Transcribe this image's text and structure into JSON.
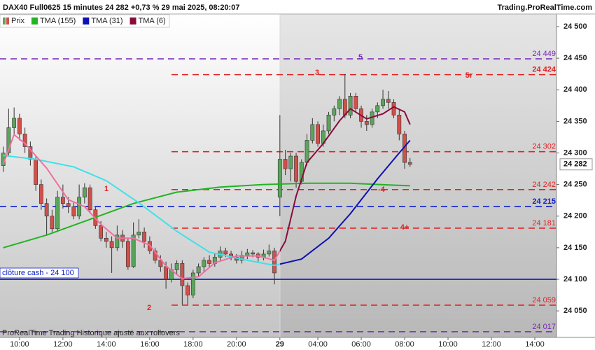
{
  "chart_data": {
    "type": "candlestick",
    "title": "DAX40 Full0625 15 minutes 24 282 +0,73 % 29 mai 2025, 08:20:07",
    "source": "Trading.ProRealTime.com",
    "footer": "ProRealTime Trading  Historique ajusté aux rollovers",
    "xlim": [
      -3.6,
      99
    ],
    "ylim": [
      24008,
      24520
    ],
    "grid": false,
    "xticks": [
      {
        "value": 0,
        "label": "10:00"
      },
      {
        "value": 8,
        "label": "12:00"
      },
      {
        "value": 16,
        "label": "14:00"
      },
      {
        "value": 24,
        "label": "16:00"
      },
      {
        "value": 32,
        "label": "18:00"
      },
      {
        "value": 40,
        "label": "20:00"
      },
      {
        "value": 48,
        "label": "29"
      },
      {
        "value": 55,
        "label": "04:00"
      },
      {
        "value": 63,
        "label": "06:00"
      },
      {
        "value": 71,
        "label": "08:00"
      },
      {
        "value": 79,
        "label": "10:00"
      },
      {
        "value": 87,
        "label": "12:00"
      },
      {
        "value": 95,
        "label": "14:00"
      }
    ],
    "yticks": [
      {
        "value": 24050,
        "label": "24 050"
      },
      {
        "value": 24100,
        "label": "24 100"
      },
      {
        "value": 24150,
        "label": "24 150"
      },
      {
        "value": 24200,
        "label": "24 200"
      },
      {
        "value": 24250,
        "label": "24 250"
      },
      {
        "value": 24300,
        "label": "24 300"
      },
      {
        "value": 24350,
        "label": "24 350"
      },
      {
        "value": 24400,
        "label": "24 400"
      },
      {
        "value": 24450,
        "label": "24 450"
      },
      {
        "value": 24500,
        "label": "24 500"
      }
    ],
    "series": [
      {
        "name": "Prix",
        "up_color": "#5aa55a",
        "down_color": "#d0504a",
        "x": [
          -3,
          -2,
          -1,
          0,
          1,
          2,
          3,
          4,
          5,
          6,
          7,
          8,
          9,
          10,
          11,
          12,
          13,
          14,
          15,
          16,
          17,
          18,
          19,
          20,
          21,
          22,
          23,
          24,
          25,
          26,
          27,
          28,
          29,
          30,
          31,
          32,
          33,
          34,
          35,
          36,
          37,
          38,
          39,
          40,
          41,
          42,
          43,
          44,
          45,
          46,
          47,
          48,
          49,
          50,
          51,
          52,
          53,
          54,
          55,
          56,
          57,
          58,
          59,
          60,
          61,
          62,
          63,
          64,
          65,
          66,
          67,
          68,
          69,
          70,
          71,
          72
        ],
        "open": [
          24280,
          24300,
          24340,
          24355,
          24330,
          24310,
          24290,
          24250,
          24220,
          24200,
          24180,
          24230,
          24220,
          24215,
          24200,
          24230,
          24245,
          24210,
          24185,
          24165,
          24160,
          24150,
          24170,
          24160,
          24120,
          24170,
          24175,
          24160,
          24145,
          24130,
          24120,
          24100,
          24115,
          24125,
          24090,
          24075,
          24110,
          24120,
          24130,
          24125,
          24135,
          24145,
          24140,
          24135,
          24130,
          24138,
          24142,
          24140,
          24135,
          24140,
          24145,
          24230,
          24290,
          24275,
          24295,
          24255,
          24285,
          24320,
          24345,
          24315,
          24335,
          24360,
          24370,
          24385,
          24360,
          24390,
          24370,
          24350,
          24345,
          24365,
          24375,
          24385,
          24380,
          24360,
          24330,
          24285
        ],
        "high": [
          24310,
          24370,
          24372,
          24362,
          24340,
          24318,
          24295,
          24258,
          24228,
          24210,
          24240,
          24250,
          24230,
          24222,
          24250,
          24252,
          24250,
          24215,
          24192,
          24175,
          24168,
          24185,
          24178,
          24165,
          24190,
          24195,
          24182,
          24168,
          24150,
          24138,
          24128,
          24125,
          24130,
          24130,
          24095,
          24115,
          24125,
          24135,
          24138,
          24142,
          24152,
          24150,
          24145,
          24140,
          24145,
          24148,
          24146,
          24143,
          24147,
          24155,
          24150,
          24360,
          24305,
          24300,
          24300,
          24290,
          24330,
          24355,
          24350,
          24345,
          24365,
          24375,
          24390,
          24425,
          24395,
          24395,
          24375,
          24360,
          24370,
          24380,
          24400,
          24398,
          24385,
          24370,
          24335,
          24292
        ],
        "low": [
          24270,
          24295,
          24330,
          24320,
          24300,
          24280,
          24240,
          24210,
          24170,
          24175,
          24175,
          24212,
          24205,
          24195,
          24195,
          24220,
          24205,
          24180,
          24160,
          24150,
          24110,
          24145,
          24150,
          24115,
          24118,
          24165,
          24150,
          24140,
          24125,
          24112,
          24085,
          24095,
          24108,
          24060,
          24060,
          24070,
          24105,
          24112,
          24118,
          24120,
          24130,
          24135,
          24130,
          24125,
          24125,
          24132,
          24135,
          24128,
          24130,
          24136,
          24092,
          24200,
          24265,
          24255,
          24245,
          24250,
          24280,
          24315,
          24310,
          24310,
          24330,
          24350,
          24360,
          24355,
          24355,
          24365,
          24340,
          24335,
          24340,
          24355,
          24370,
          24370,
          24355,
          24320,
          24275,
          24278
        ],
        "close": [
          24300,
          24340,
          24355,
          24330,
          24310,
          24290,
          24250,
          24220,
          24200,
          24180,
          24230,
          24220,
          24215,
          24200,
          24230,
          24245,
          24210,
          24185,
          24165,
          24160,
          24150,
          24170,
          24160,
          24120,
          24170,
          24175,
          24160,
          24145,
          24130,
          24120,
          24100,
          24115,
          24125,
          24090,
          24075,
          24110,
          24120,
          24130,
          24125,
          24135,
          24145,
          24140,
          24135,
          24130,
          24138,
          24142,
          24140,
          24135,
          24140,
          24145,
          24110,
          24290,
          24275,
          24295,
          24255,
          24285,
          24320,
          24345,
          24315,
          24335,
          24360,
          24370,
          24385,
          24360,
          24390,
          24370,
          24350,
          24345,
          24365,
          24375,
          24385,
          24380,
          24360,
          24330,
          24285,
          24282
        ]
      },
      {
        "name": "TMA (155)",
        "color": "#22b422",
        "x": [
          -3,
          5,
          13,
          21,
          29,
          37,
          45,
          53,
          61,
          69,
          72
        ],
        "values": [
          24150,
          24170,
          24195,
          24220,
          24238,
          24246,
          24250,
          24252,
          24252,
          24249,
          24248
        ]
      },
      {
        "name": "TMA (31)",
        "color": "#1010b0",
        "prior_color": "#40e0e8",
        "x": [
          -3,
          3,
          10,
          16,
          22,
          29,
          35,
          42,
          47,
          52,
          57,
          61,
          66,
          70,
          72
        ],
        "values": [
          24296,
          24290,
          24278,
          24256,
          24221,
          24176,
          24143,
          24130,
          24122,
          24132,
          24165,
          24204,
          24259,
          24300,
          24320
        ]
      },
      {
        "name": "TMA (6)",
        "color": "#8b0a3a",
        "prior_color": "#f070a0",
        "x": [
          -3,
          -1,
          1,
          5,
          9,
          12,
          15,
          18,
          21,
          24,
          27,
          30,
          33,
          36,
          40,
          44,
          47,
          49,
          51,
          53,
          56,
          59,
          61,
          64,
          67,
          69,
          71,
          72
        ],
        "values": [
          24282,
          24329,
          24315,
          24276,
          24226,
          24215,
          24187,
          24165,
          24165,
          24154,
          24121,
          24101,
          24104,
          24126,
          24137,
          24137,
          24130,
          24160,
          24232,
          24285,
          24315,
          24351,
          24370,
          24354,
          24362,
          24373,
          24365,
          24345
        ]
      }
    ],
    "levels": [
      {
        "value": 24449,
        "label": "24 449",
        "color": "#7a28b8",
        "style": "dashed",
        "span": "full"
      },
      {
        "value": 24424,
        "label": "24 424",
        "color": "#e02424",
        "style": "dashed",
        "span": "right"
      },
      {
        "value": 24302,
        "label": "24 302",
        "color": "#e02424",
        "style": "dashed",
        "span": "right"
      },
      {
        "value": 24242,
        "label": "24 242",
        "color": "#e02424",
        "style": "dashed",
        "span": "right"
      },
      {
        "value": 24215,
        "label": "24 215",
        "color": "#1020c8",
        "style": "dashed",
        "span": "full"
      },
      {
        "value": 24181,
        "label": "24 181",
        "color": "#e02424",
        "style": "dashed",
        "span": "right"
      },
      {
        "value": 24059,
        "label": "24 059",
        "color": "#e02424",
        "style": "dashed",
        "span": "right"
      },
      {
        "value": 24017,
        "label": "24 017",
        "color": "#7a28b8",
        "style": "dashed",
        "span": "full"
      }
    ],
    "cash_close": {
      "value": 24100,
      "label": "clôture cash -  24 100",
      "color": "#1020c8"
    },
    "last_price": {
      "value": 24282,
      "label": "24 282"
    },
    "annotations": [
      {
        "text": "5",
        "color": "#7a28b8"
      },
      {
        "text": "3",
        "color": "#e02424"
      },
      {
        "text": "5r",
        "color": "#e02424"
      },
      {
        "text": "1",
        "color": "#e02424"
      },
      {
        "text": "-4",
        "color": "#e02424"
      },
      {
        "text": "4+",
        "color": "#e02424"
      },
      {
        "text": "2",
        "color": "#e02424"
      }
    ]
  }
}
